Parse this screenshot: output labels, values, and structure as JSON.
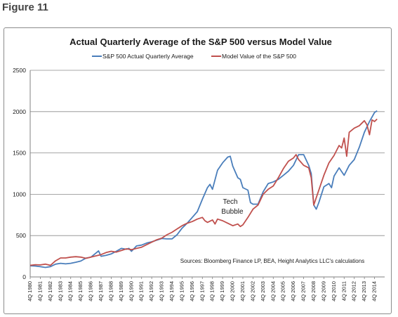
{
  "figure_label": "Figure 11",
  "chart_data": {
    "type": "line",
    "title": "Actual Quarterly Average of the S&P 500 versus Model Value",
    "xlabel": "",
    "ylabel": "",
    "ylim": [
      0,
      2500
    ],
    "yticks": [
      0,
      500,
      1000,
      1500,
      2000,
      2500
    ],
    "grid": true,
    "legend": "top",
    "x_labels": [
      "4Q 1980",
      "4Q 1981",
      "4Q 1982",
      "4Q 1983",
      "4Q 1984",
      "4Q 1985",
      "4Q 1986",
      "4Q 1987",
      "4Q 1988",
      "4Q 1989",
      "4Q 1990",
      "4Q 1991",
      "4Q 1992",
      "4Q 1993",
      "4Q 1994",
      "4Q 1995",
      "4Q 1996",
      "4Q 1997",
      "4Q 1998",
      "4Q 1999",
      "4Q 2000",
      "4Q 2001",
      "4Q 2002",
      "4Q 2003",
      "4Q 2004",
      "4Q 2005",
      "4Q 2006",
      "4Q 2007",
      "4Q 2008",
      "4Q 2009",
      "4Q 2010",
      "4Q 2011",
      "4Q 2012",
      "4Q 2013",
      "4Q 2014"
    ],
    "x_start": 1980.75,
    "series": [
      {
        "name": "S&P 500 Actual Quarterly Average",
        "color": "#4a7ebb",
        "points": [
          [
            1980.75,
            135
          ],
          [
            1981.25,
            132
          ],
          [
            1981.75,
            124
          ],
          [
            1982.25,
            115
          ],
          [
            1982.75,
            125
          ],
          [
            1983.25,
            155
          ],
          [
            1983.75,
            165
          ],
          [
            1984.25,
            158
          ],
          [
            1984.75,
            165
          ],
          [
            1985.25,
            178
          ],
          [
            1985.75,
            192
          ],
          [
            1986.25,
            228
          ],
          [
            1986.75,
            240
          ],
          [
            1987.25,
            290
          ],
          [
            1987.5,
            315
          ],
          [
            1987.75,
            250
          ],
          [
            1988.25,
            262
          ],
          [
            1988.75,
            278
          ],
          [
            1989.25,
            310
          ],
          [
            1989.75,
            345
          ],
          [
            1990.25,
            335
          ],
          [
            1990.5,
            345
          ],
          [
            1990.75,
            310
          ],
          [
            1991.25,
            375
          ],
          [
            1991.75,
            385
          ],
          [
            1992.25,
            410
          ],
          [
            1992.75,
            425
          ],
          [
            1993.25,
            445
          ],
          [
            1993.75,
            465
          ],
          [
            1994.25,
            460
          ],
          [
            1994.75,
            460
          ],
          [
            1995.25,
            510
          ],
          [
            1995.75,
            590
          ],
          [
            1996.25,
            650
          ],
          [
            1996.75,
            720
          ],
          [
            1997.25,
            790
          ],
          [
            1997.75,
            940
          ],
          [
            1998.25,
            1080
          ],
          [
            1998.5,
            1120
          ],
          [
            1998.75,
            1060
          ],
          [
            1999.25,
            1290
          ],
          [
            1999.75,
            1380
          ],
          [
            2000.25,
            1450
          ],
          [
            2000.5,
            1460
          ],
          [
            2000.75,
            1340
          ],
          [
            2001.25,
            1200
          ],
          [
            2001.5,
            1180
          ],
          [
            2001.75,
            1080
          ],
          [
            2002.25,
            1050
          ],
          [
            2002.5,
            900
          ],
          [
            2002.75,
            880
          ],
          [
            2003.25,
            880
          ],
          [
            2003.75,
            1030
          ],
          [
            2004.25,
            1130
          ],
          [
            2004.75,
            1150
          ],
          [
            2005.25,
            1180
          ],
          [
            2005.75,
            1230
          ],
          [
            2006.25,
            1280
          ],
          [
            2006.75,
            1350
          ],
          [
            2007.25,
            1480
          ],
          [
            2007.75,
            1480
          ],
          [
            2008.25,
            1350
          ],
          [
            2008.5,
            1250
          ],
          [
            2008.75,
            870
          ],
          [
            2009.0,
            820
          ],
          [
            2009.25,
            900
          ],
          [
            2009.75,
            1090
          ],
          [
            2010.25,
            1130
          ],
          [
            2010.5,
            1080
          ],
          [
            2010.75,
            1220
          ],
          [
            2011.25,
            1320
          ],
          [
            2011.75,
            1230
          ],
          [
            2012.25,
            1350
          ],
          [
            2012.75,
            1420
          ],
          [
            2013.25,
            1570
          ],
          [
            2013.75,
            1750
          ],
          [
            2014.25,
            1880
          ],
          [
            2014.75,
            1990
          ],
          [
            2015.0,
            2010
          ]
        ]
      },
      {
        "name": "Model Value of the S&P 500",
        "color": "#c0504d",
        "points": [
          [
            1980.75,
            140
          ],
          [
            1981.25,
            148
          ],
          [
            1981.75,
            145
          ],
          [
            1982.25,
            155
          ],
          [
            1982.75,
            140
          ],
          [
            1983.25,
            195
          ],
          [
            1983.75,
            230
          ],
          [
            1984.25,
            230
          ],
          [
            1984.75,
            240
          ],
          [
            1985.25,
            245
          ],
          [
            1985.75,
            240
          ],
          [
            1986.25,
            225
          ],
          [
            1986.75,
            240
          ],
          [
            1987.25,
            255
          ],
          [
            1987.75,
            270
          ],
          [
            1988.25,
            295
          ],
          [
            1988.75,
            310
          ],
          [
            1989.25,
            300
          ],
          [
            1989.75,
            320
          ],
          [
            1990.25,
            340
          ],
          [
            1990.75,
            330
          ],
          [
            1991.25,
            345
          ],
          [
            1991.75,
            360
          ],
          [
            1992.25,
            390
          ],
          [
            1992.75,
            420
          ],
          [
            1993.25,
            450
          ],
          [
            1993.75,
            470
          ],
          [
            1994.25,
            510
          ],
          [
            1994.75,
            540
          ],
          [
            1995.25,
            580
          ],
          [
            1995.75,
            620
          ],
          [
            1996.25,
            650
          ],
          [
            1996.75,
            670
          ],
          [
            1997.25,
            700
          ],
          [
            1997.75,
            720
          ],
          [
            1998.0,
            680
          ],
          [
            1998.25,
            660
          ],
          [
            1998.75,
            690
          ],
          [
            1999.0,
            640
          ],
          [
            1999.25,
            700
          ],
          [
            1999.75,
            680
          ],
          [
            2000.25,
            650
          ],
          [
            2000.75,
            620
          ],
          [
            2001.25,
            640
          ],
          [
            2001.5,
            610
          ],
          [
            2001.75,
            630
          ],
          [
            2002.25,
            720
          ],
          [
            2002.75,
            820
          ],
          [
            2003.25,
            870
          ],
          [
            2003.75,
            1000
          ],
          [
            2004.25,
            1060
          ],
          [
            2004.75,
            1100
          ],
          [
            2005.25,
            1200
          ],
          [
            2005.75,
            1310
          ],
          [
            2006.25,
            1400
          ],
          [
            2006.75,
            1440
          ],
          [
            2007.0,
            1480
          ],
          [
            2007.25,
            1420
          ],
          [
            2007.75,
            1350
          ],
          [
            2008.25,
            1320
          ],
          [
            2008.5,
            1200
          ],
          [
            2008.75,
            870
          ],
          [
            2009.25,
            1050
          ],
          [
            2009.75,
            1230
          ],
          [
            2010.25,
            1380
          ],
          [
            2010.75,
            1470
          ],
          [
            2011.25,
            1590
          ],
          [
            2011.5,
            1560
          ],
          [
            2011.75,
            1680
          ],
          [
            2012.0,
            1460
          ],
          [
            2012.25,
            1750
          ],
          [
            2012.75,
            1800
          ],
          [
            2013.25,
            1830
          ],
          [
            2013.75,
            1890
          ],
          [
            2014.0,
            1840
          ],
          [
            2014.25,
            1720
          ],
          [
            2014.5,
            1900
          ],
          [
            2014.75,
            1880
          ],
          [
            2015.0,
            1910
          ]
        ]
      }
    ],
    "annotations": [
      {
        "text_lines": [
          "Tech",
          "Bubble"
        ]
      },
      {
        "text": "Sources: Bloomberg Finance LP, BEA, Height Analytics LLC's calculations"
      }
    ]
  }
}
